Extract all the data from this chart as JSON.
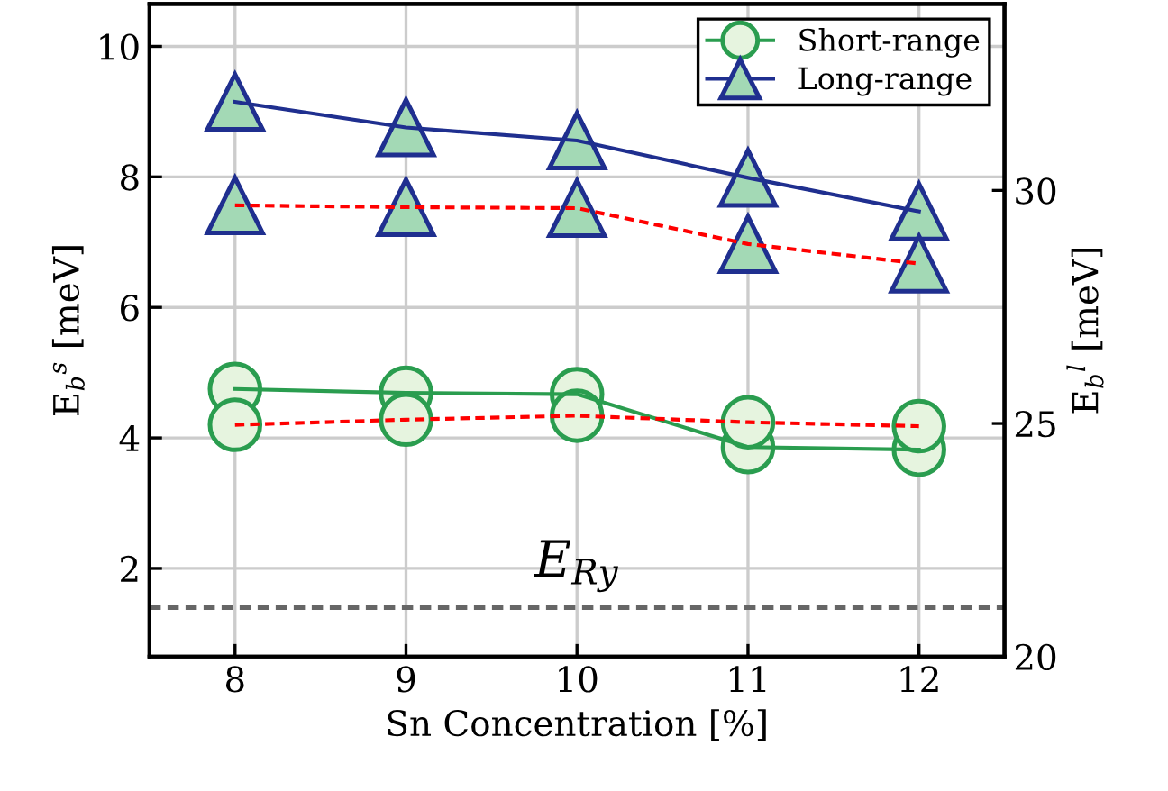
{
  "chart_data": {
    "type": "line",
    "xlabel": "Sn Concentration [%]",
    "ylabel": "E$_{b}$$^{s}$ [meV]",
    "y2label": "E$_{b}$$^{l}$ [meV]",
    "x": [
      8,
      9,
      10,
      11,
      12
    ],
    "series": [
      {
        "name": "Short-range",
        "color": "#2a9d4f",
        "marker": "circle",
        "line_style": "solid",
        "values": [
          4.75,
          4.69,
          4.67,
          3.86,
          3.82
        ]
      },
      {
        "color": "#ff0000",
        "marker": "circle",
        "line_style": "dashed",
        "values": [
          4.2,
          4.28,
          4.34,
          4.24,
          4.18
        ]
      },
      {
        "name": "Long-range",
        "color": "#1f2f8f",
        "marker": "triangle",
        "line_style": "solid",
        "axis": "y2",
        "values": [
          31.9,
          31.35,
          31.07,
          30.27,
          29.55
        ]
      },
      {
        "color": "#ff0000",
        "marker": "triangle",
        "line_style": "dashed",
        "axis": "y2",
        "values": [
          29.68,
          29.64,
          29.62,
          28.85,
          28.43
        ]
      }
    ],
    "xlim": [
      7.5,
      12.5
    ],
    "xticks": [
      8,
      9,
      10,
      11,
      12
    ],
    "ylim": [
      0.65,
      10.65
    ],
    "yticks": [
      2,
      4,
      6,
      8,
      10
    ],
    "y2lim": [
      20,
      34
    ],
    "y2ticks": [
      20,
      25,
      30
    ],
    "ref_lines": [
      {
        "axis": "y",
        "value": 1.4,
        "label": "E$_{Ry}$",
        "color": "#666666",
        "line_style": "dashed"
      }
    ],
    "grid": true,
    "legend": "top right"
  }
}
